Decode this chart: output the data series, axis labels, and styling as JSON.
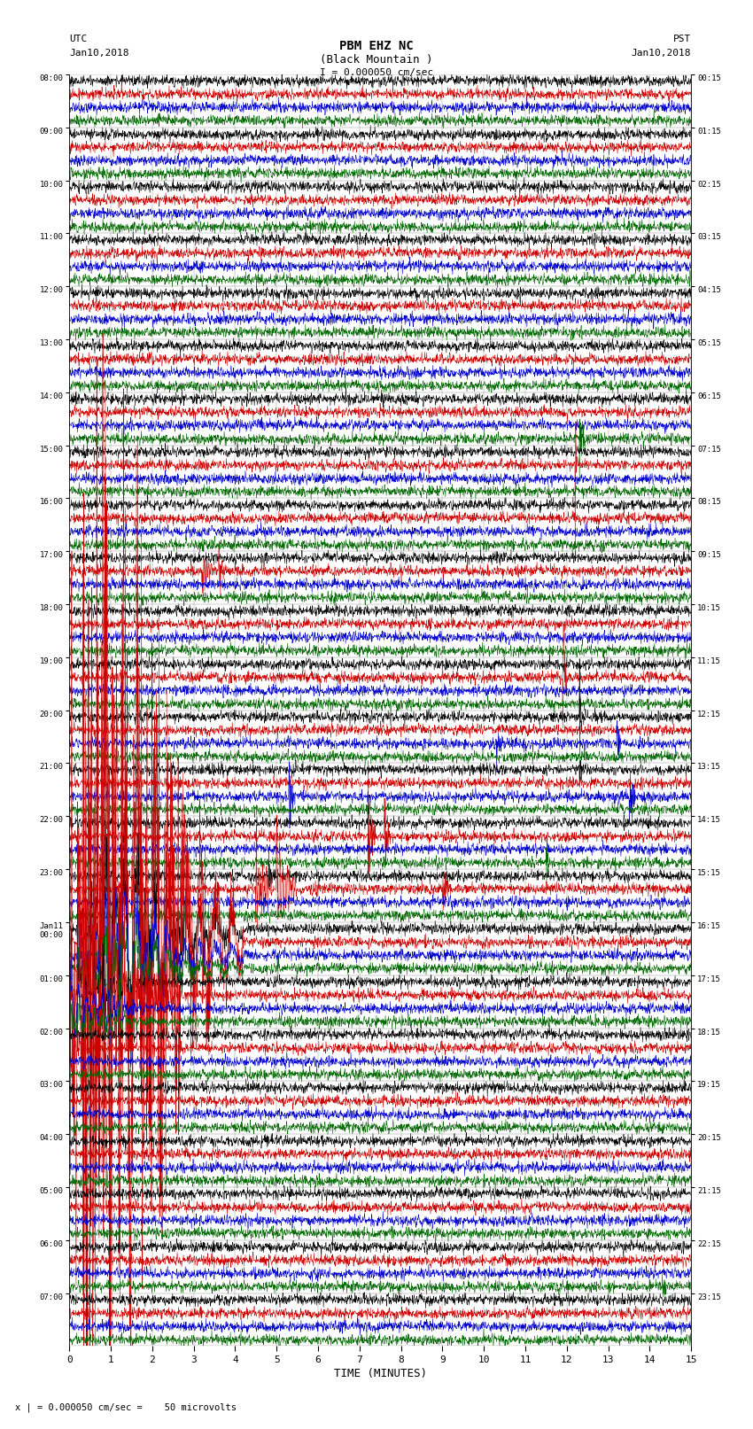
{
  "title_line1": "PBM EHZ NC",
  "title_line2": "(Black Mountain )",
  "scale_label": "I = 0.000050 cm/sec",
  "utc_label1": "UTC",
  "utc_label2": "Jan10,2018",
  "pst_label1": "PST",
  "pst_label2": "Jan10,2018",
  "xlabel": "TIME (MINUTES)",
  "bottom_label": "x | = 0.000050 cm/sec =    50 microvolts",
  "left_times": [
    "08:00",
    "09:00",
    "10:00",
    "11:00",
    "12:00",
    "13:00",
    "14:00",
    "15:00",
    "16:00",
    "17:00",
    "18:00",
    "19:00",
    "20:00",
    "21:00",
    "22:00",
    "23:00",
    "Jan11\n00:00",
    "01:00",
    "02:00",
    "03:00",
    "04:00",
    "05:00",
    "06:00",
    "07:00"
  ],
  "right_times": [
    "00:15",
    "01:15",
    "02:15",
    "03:15",
    "04:15",
    "05:15",
    "06:15",
    "07:15",
    "08:15",
    "09:15",
    "10:15",
    "11:15",
    "12:15",
    "13:15",
    "14:15",
    "15:15",
    "16:15",
    "17:15",
    "18:15",
    "19:15",
    "20:15",
    "21:15",
    "22:15",
    "23:15"
  ],
  "n_rows": 24,
  "traces_per_row": 4,
  "bg_color": "#ffffff",
  "trace_colors": [
    "#000000",
    "#cc0000",
    "#0000cc",
    "#006600"
  ],
  "figsize": [
    8.5,
    16.13
  ],
  "dpi": 100
}
